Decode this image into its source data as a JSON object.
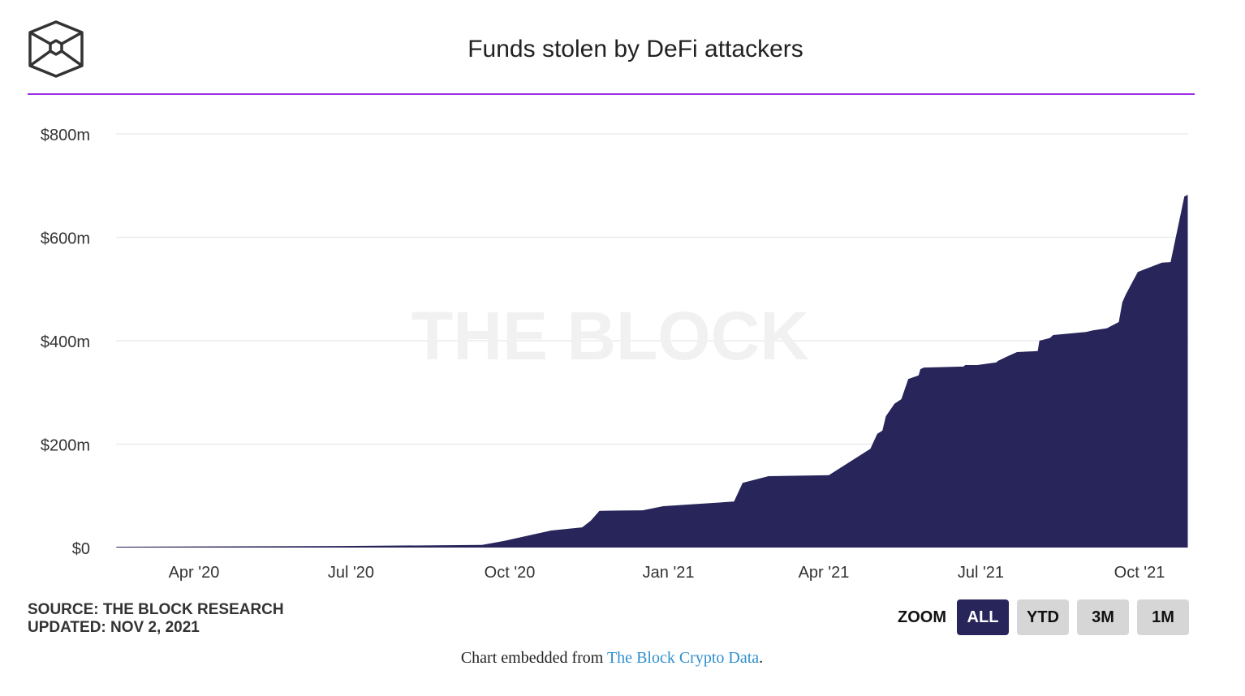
{
  "header": {
    "title": "Funds stolen by DeFi attackers",
    "logo_icon": "the-block-cube-logo"
  },
  "watermark": "THE BLOCK",
  "footer": {
    "source": "SOURCE: THE BLOCK RESEARCH",
    "updated": "UPDATED: NOV 2, 2021",
    "embed_prefix": "Chart embedded from ",
    "embed_link": "The Block Crypto Data",
    "embed_suffix": "."
  },
  "zoom": {
    "label": "ZOOM",
    "buttons": [
      {
        "label": "ALL",
        "active": true
      },
      {
        "label": "YTD",
        "active": false
      },
      {
        "label": "3M",
        "active": false
      },
      {
        "label": "1M",
        "active": false
      }
    ]
  },
  "colors": {
    "area": "#27255a",
    "rule": "#9b30e8",
    "grid": "#e8e8e8"
  },
  "chart_data": {
    "type": "area",
    "title": "Funds stolen by DeFi attackers",
    "xlabel": "",
    "ylabel": "",
    "ylim": [
      0,
      800
    ],
    "y_unit": "$m",
    "y_ticks": [
      {
        "value": 0,
        "label": "$0"
      },
      {
        "value": 200,
        "label": "$200m"
      },
      {
        "value": 400,
        "label": "$400m"
      },
      {
        "value": 600,
        "label": "$600m"
      },
      {
        "value": 800,
        "label": "$800m"
      }
    ],
    "x_ticks": [
      {
        "date": "2020-04-01",
        "label": "Apr '20"
      },
      {
        "date": "2020-07-01",
        "label": "Jul '20"
      },
      {
        "date": "2020-10-01",
        "label": "Oct '20"
      },
      {
        "date": "2021-01-01",
        "label": "Jan '21"
      },
      {
        "date": "2021-04-01",
        "label": "Apr '21"
      },
      {
        "date": "2021-07-01",
        "label": "Jul '21"
      },
      {
        "date": "2021-10-01",
        "label": "Oct '21"
      }
    ],
    "grid": true,
    "legend": "none",
    "series": [
      {
        "name": "Funds stolen",
        "points": [
          [
            "2020-02-16",
            1.6
          ],
          [
            "2020-06-25",
            3
          ],
          [
            "2020-09-15",
            5
          ],
          [
            "2020-09-28",
            13
          ],
          [
            "2020-10-25",
            33
          ],
          [
            "2020-11-12",
            39
          ],
          [
            "2020-11-17",
            52
          ],
          [
            "2020-11-22",
            71
          ],
          [
            "2020-12-17",
            72
          ],
          [
            "2020-12-29",
            80
          ],
          [
            "2021-02-08",
            89
          ],
          [
            "2021-02-13",
            125
          ],
          [
            "2021-02-28",
            138
          ],
          [
            "2021-04-04",
            140
          ],
          [
            "2021-04-28",
            191
          ],
          [
            "2021-05-02",
            220
          ],
          [
            "2021-05-05",
            226
          ],
          [
            "2021-05-07",
            254
          ],
          [
            "2021-05-12",
            278
          ],
          [
            "2021-05-16",
            287
          ],
          [
            "2021-05-20",
            326
          ],
          [
            "2021-05-26",
            333
          ],
          [
            "2021-05-27",
            345
          ],
          [
            "2021-05-29",
            348
          ],
          [
            "2021-06-21",
            350
          ],
          [
            "2021-06-22",
            353
          ],
          [
            "2021-06-29",
            353
          ],
          [
            "2021-07-10",
            358
          ],
          [
            "2021-07-11",
            361
          ],
          [
            "2021-07-16",
            369
          ],
          [
            "2021-07-22",
            378
          ],
          [
            "2021-08-03",
            380
          ],
          [
            "2021-08-04",
            400
          ],
          [
            "2021-08-10",
            405
          ],
          [
            "2021-08-12",
            411
          ],
          [
            "2021-08-31",
            417
          ],
          [
            "2021-09-04",
            420
          ],
          [
            "2021-09-12",
            424
          ],
          [
            "2021-09-19",
            436
          ],
          [
            "2021-09-21",
            474
          ],
          [
            "2021-09-23",
            489
          ],
          [
            "2021-09-30",
            533
          ],
          [
            "2021-10-14",
            551
          ],
          [
            "2021-10-19",
            552
          ],
          [
            "2021-10-27",
            679
          ],
          [
            "2021-10-29",
            682
          ]
        ]
      }
    ]
  }
}
